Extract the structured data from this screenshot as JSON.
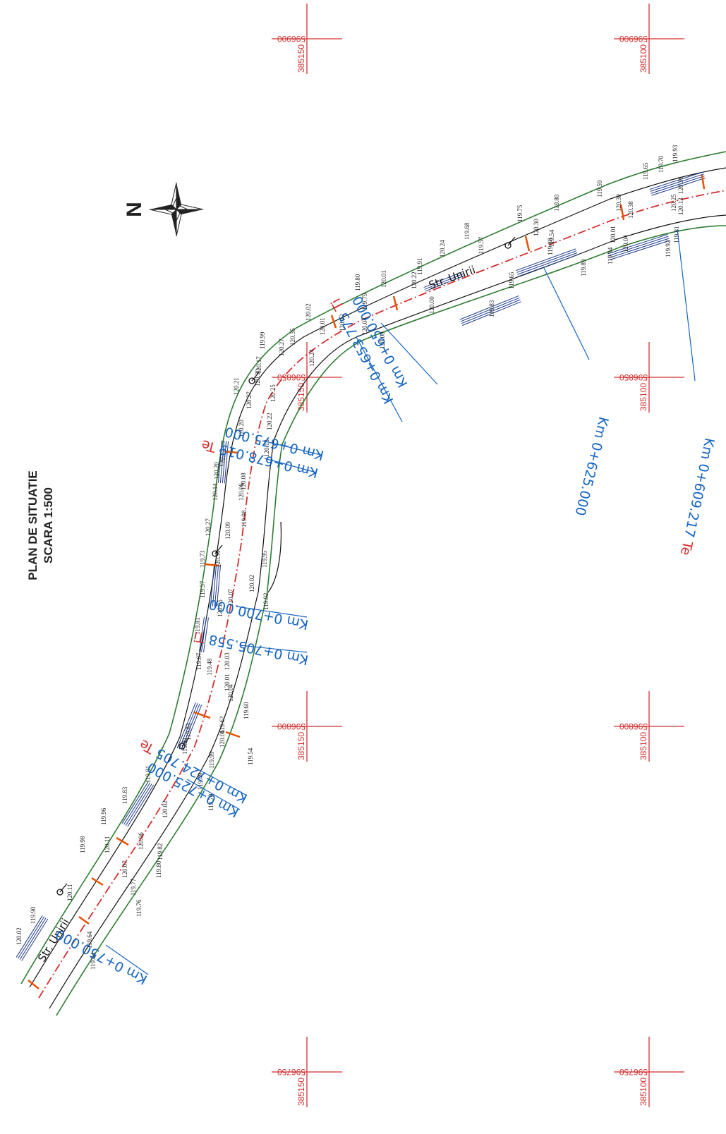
{
  "title": {
    "line1": "PLAN DE SITUATIE",
    "line2": "SCARA 1:500"
  },
  "north_label": "N",
  "street_name": "Str. Unirii",
  "colors": {
    "grid": "#d32f2f",
    "axis": "#d32f2f",
    "chainage": "#1565c0",
    "curb": "#2e7d32",
    "road_edge": "#111111",
    "crossing": "#1e3a8a",
    "tick": "#e65100"
  },
  "grid_marks": [
    {
      "y_label": "596900",
      "x_label": "385150"
    },
    {
      "y_label": "596900",
      "x_label": "385100"
    },
    {
      "y_label": "596850",
      "x_label": "385150"
    },
    {
      "y_label": "596850",
      "x_label": "385100"
    },
    {
      "y_label": "596800",
      "x_label": "385150"
    },
    {
      "y_label": "596800",
      "x_label": "385100"
    },
    {
      "y_label": "596750",
      "x_label": "385150"
    },
    {
      "y_label": "596750",
      "x_label": "385100"
    }
  ],
  "chainages": [
    {
      "text": "Km 0+609.217",
      "suffix": "Te"
    },
    {
      "text": "Km 0+625.000",
      "suffix": ""
    },
    {
      "text": "Km 0+650.000",
      "suffix": ""
    },
    {
      "text": "Km 0+653.775",
      "suffix": "Ti"
    },
    {
      "text": "Km 0+675.000",
      "suffix": ""
    },
    {
      "text": "Km 0+678.019",
      "suffix": "Te"
    },
    {
      "text": "Km 0+700.000",
      "suffix": ""
    },
    {
      "text": "Km 0+705.558",
      "suffix": "Ti"
    },
    {
      "text": "Km 0+724.705",
      "suffix": "Te"
    },
    {
      "text": "Km 0+725.000",
      "suffix": ""
    },
    {
      "text": "Km 0+750.000",
      "suffix": ""
    }
  ],
  "elevations": [
    "119.93",
    "119.70",
    "119.65",
    "120.36",
    "120.25",
    "120.13",
    "119.81",
    "119.92",
    "119.59",
    "120.30",
    "120.38",
    "120.01",
    "120.04",
    "119.94",
    "119.80",
    "119.75",
    "120.30",
    "119.88",
    "119.89",
    "119.54",
    "119.68",
    "119.57",
    "120.24",
    "119.83",
    "119.65",
    "119.91",
    "120.22",
    "120.00",
    "120.01",
    "119.80",
    "119.79",
    "120.02",
    "120.01",
    "120.12",
    "120.04",
    "120.08",
    "120.35",
    "120.27",
    "119.99",
    "120.17",
    "120.30",
    "120.21",
    "120.27",
    "120.24",
    "120.25",
    "120.22",
    "120.20",
    "120.13",
    "120.17",
    "120.20",
    "120.08",
    "120.06",
    "120.14",
    "119.98",
    "120.27",
    "120.09",
    "119.73",
    "120.31",
    "119.95",
    "120.02",
    "119.92",
    "119.57",
    "120.07",
    "120.05",
    "119.81",
    "119.87",
    "119.48",
    "120.03",
    "120.01",
    "120.04",
    "119.91",
    "119.83",
    "119.60",
    "119.62",
    "120.06",
    "119.54",
    "119.81",
    "119.99",
    "119.49",
    "119.70",
    "119.83",
    "120.02",
    "119.96",
    "120.11",
    "120.06",
    "119.82",
    "119.80",
    "119.98",
    "120.07",
    "119.77",
    "119.76",
    "119.90",
    "120.11",
    "120.02",
    "119.94",
    "119.64"
  ]
}
